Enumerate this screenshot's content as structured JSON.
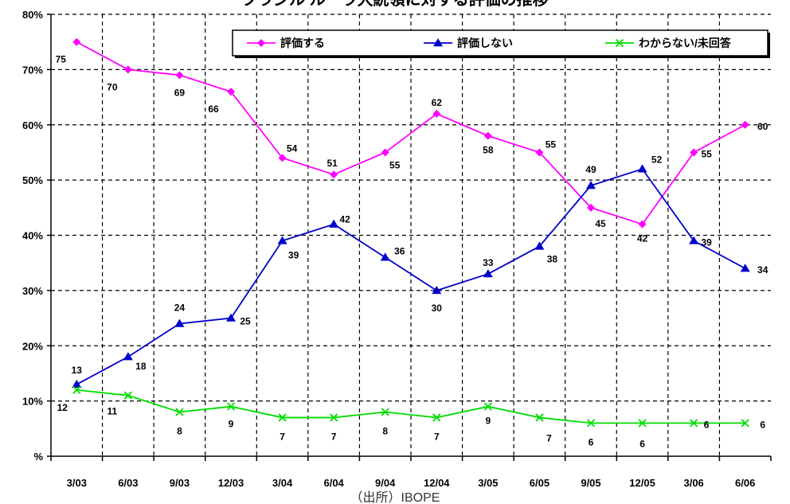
{
  "chart_data": {
    "type": "line",
    "title": "ブラジル ルーラ大統領に対する評価の推移",
    "source": "（出所）IBOPE",
    "x": [
      "3/03",
      "6/03",
      "9/03",
      "12/03",
      "3/04",
      "6/04",
      "9/04",
      "12/04",
      "3/05",
      "6/05",
      "9/05",
      "12/05",
      "3/06",
      "6/06"
    ],
    "y_tick_labels": [
      "%",
      "10%",
      "20%",
      "30%",
      "40%",
      "50%",
      "60%",
      "70%",
      "80%"
    ],
    "ylim": [
      0,
      80
    ],
    "grid": true,
    "legend_position": "top-right",
    "series": [
      {
        "name": "評価する",
        "color": "#ff00ff",
        "marker": "diamond",
        "values": [
          75,
          70,
          69,
          66,
          54,
          51,
          55,
          62,
          58,
          55,
          45,
          42,
          55,
          60
        ]
      },
      {
        "name": "評価しない",
        "color": "#0000cc",
        "marker": "triangle",
        "values": [
          13,
          18,
          24,
          25,
          39,
          42,
          36,
          30,
          33,
          38,
          49,
          52,
          39,
          34
        ]
      },
      {
        "name": "わからない/未回答",
        "color": "#00dd00",
        "marker": "x",
        "values": [
          12,
          11,
          8,
          9,
          7,
          7,
          8,
          7,
          9,
          7,
          6,
          6,
          6,
          6
        ]
      }
    ]
  }
}
